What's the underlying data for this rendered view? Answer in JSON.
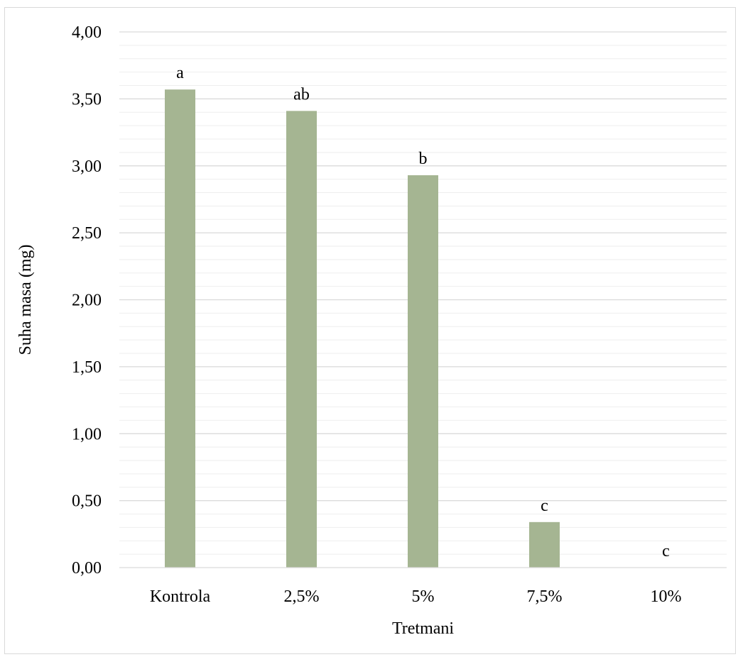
{
  "chart_data": {
    "type": "bar",
    "title": "",
    "xlabel": "Tretmani",
    "ylabel": "Suha masa (mg)",
    "categories": [
      "Kontrola",
      "2,5%",
      "5%",
      "7,5%",
      "10%"
    ],
    "values": [
      3.57,
      3.41,
      2.93,
      0.34,
      0.0
    ],
    "data_labels": [
      "a",
      "ab",
      "b",
      "c",
      "c"
    ],
    "ylim": [
      0,
      4
    ],
    "yticks": [
      0,
      0.5,
      1.0,
      1.5,
      2.0,
      2.5,
      3.0,
      3.5,
      4.0
    ],
    "ytick_labels": [
      "0,00",
      "0,50",
      "1,00",
      "1,50",
      "2,00",
      "2,50",
      "3,00",
      "3,50",
      "4,00"
    ],
    "minor_gridlines": true,
    "bar_color": "#a5b592",
    "gridline_color": "#d9d9d9",
    "minor_gridline_color": "#eeeeee",
    "legend": "none"
  }
}
